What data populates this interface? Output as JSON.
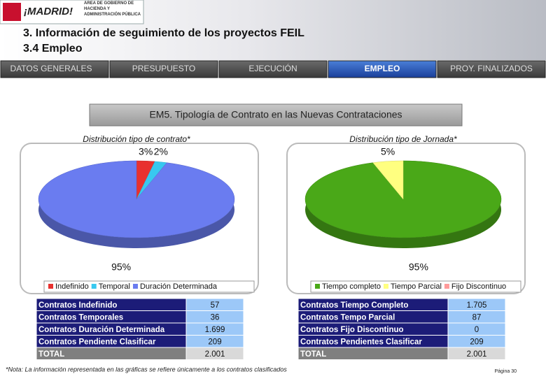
{
  "header": {
    "logo": "¡MADRID!",
    "department": "ÁREA DE GOBIERNO DE HACIENDA Y ADMINISTRACIÓN PÚBLICA",
    "title": "3. Información de seguimiento de los proyectos FEIL",
    "subtitle": "3.4 Empleo"
  },
  "tabs": [
    "DATOS GENERALES",
    "PRESUPUESTO",
    "EJECUCIÓN",
    "EMPLEO",
    "PROY. FINALIZADOS"
  ],
  "section_title": "EM5. Tipología de Contrato en las Nuevas Contrataciones",
  "chart_data": [
    {
      "type": "pie",
      "title": "Distribución tipo de contrato*",
      "categories": [
        "Indefinido",
        "Temporal",
        "Duración Determinada"
      ],
      "values": [
        3,
        2,
        95
      ],
      "value_labels": [
        "3%",
        "2%",
        "95%"
      ],
      "colors": [
        "#e8312f",
        "#38c8f0",
        "#6a7cf0"
      ]
    },
    {
      "type": "pie",
      "title": "Distribución tipo de Jornada*",
      "categories": [
        "Tiempo completo",
        "Tiempo Parcial",
        "Fijo Discontinuo"
      ],
      "values": [
        95,
        5,
        0
      ],
      "value_labels": [
        "95%",
        "5%",
        null
      ],
      "colors": [
        "#4aa818",
        "#ffff80",
        "#ff9a9a"
      ]
    }
  ],
  "tables": [
    {
      "rows": [
        [
          "Contratos Indefinido",
          "57"
        ],
        [
          "Contratos Temporales",
          "36"
        ],
        [
          "Contratos Duración Determinada",
          "1.699"
        ],
        [
          "Contratos Pendiente Clasificar",
          "209"
        ],
        [
          "TOTAL",
          "2.001"
        ]
      ]
    },
    {
      "rows": [
        [
          "Contratos Tiempo Completo",
          "1.705"
        ],
        [
          "Contratos Tempo Parcial",
          "87"
        ],
        [
          "Contratos Fijo Discontinuo",
          "0"
        ],
        [
          "Contratos Pendientes Clasificar",
          "209"
        ],
        [
          "TOTAL",
          "2.001"
        ]
      ]
    }
  ],
  "footnote": "*Nota: La información representada en las gráficas se refiere únicamente a los contratos clasificados",
  "page": "Página 30"
}
